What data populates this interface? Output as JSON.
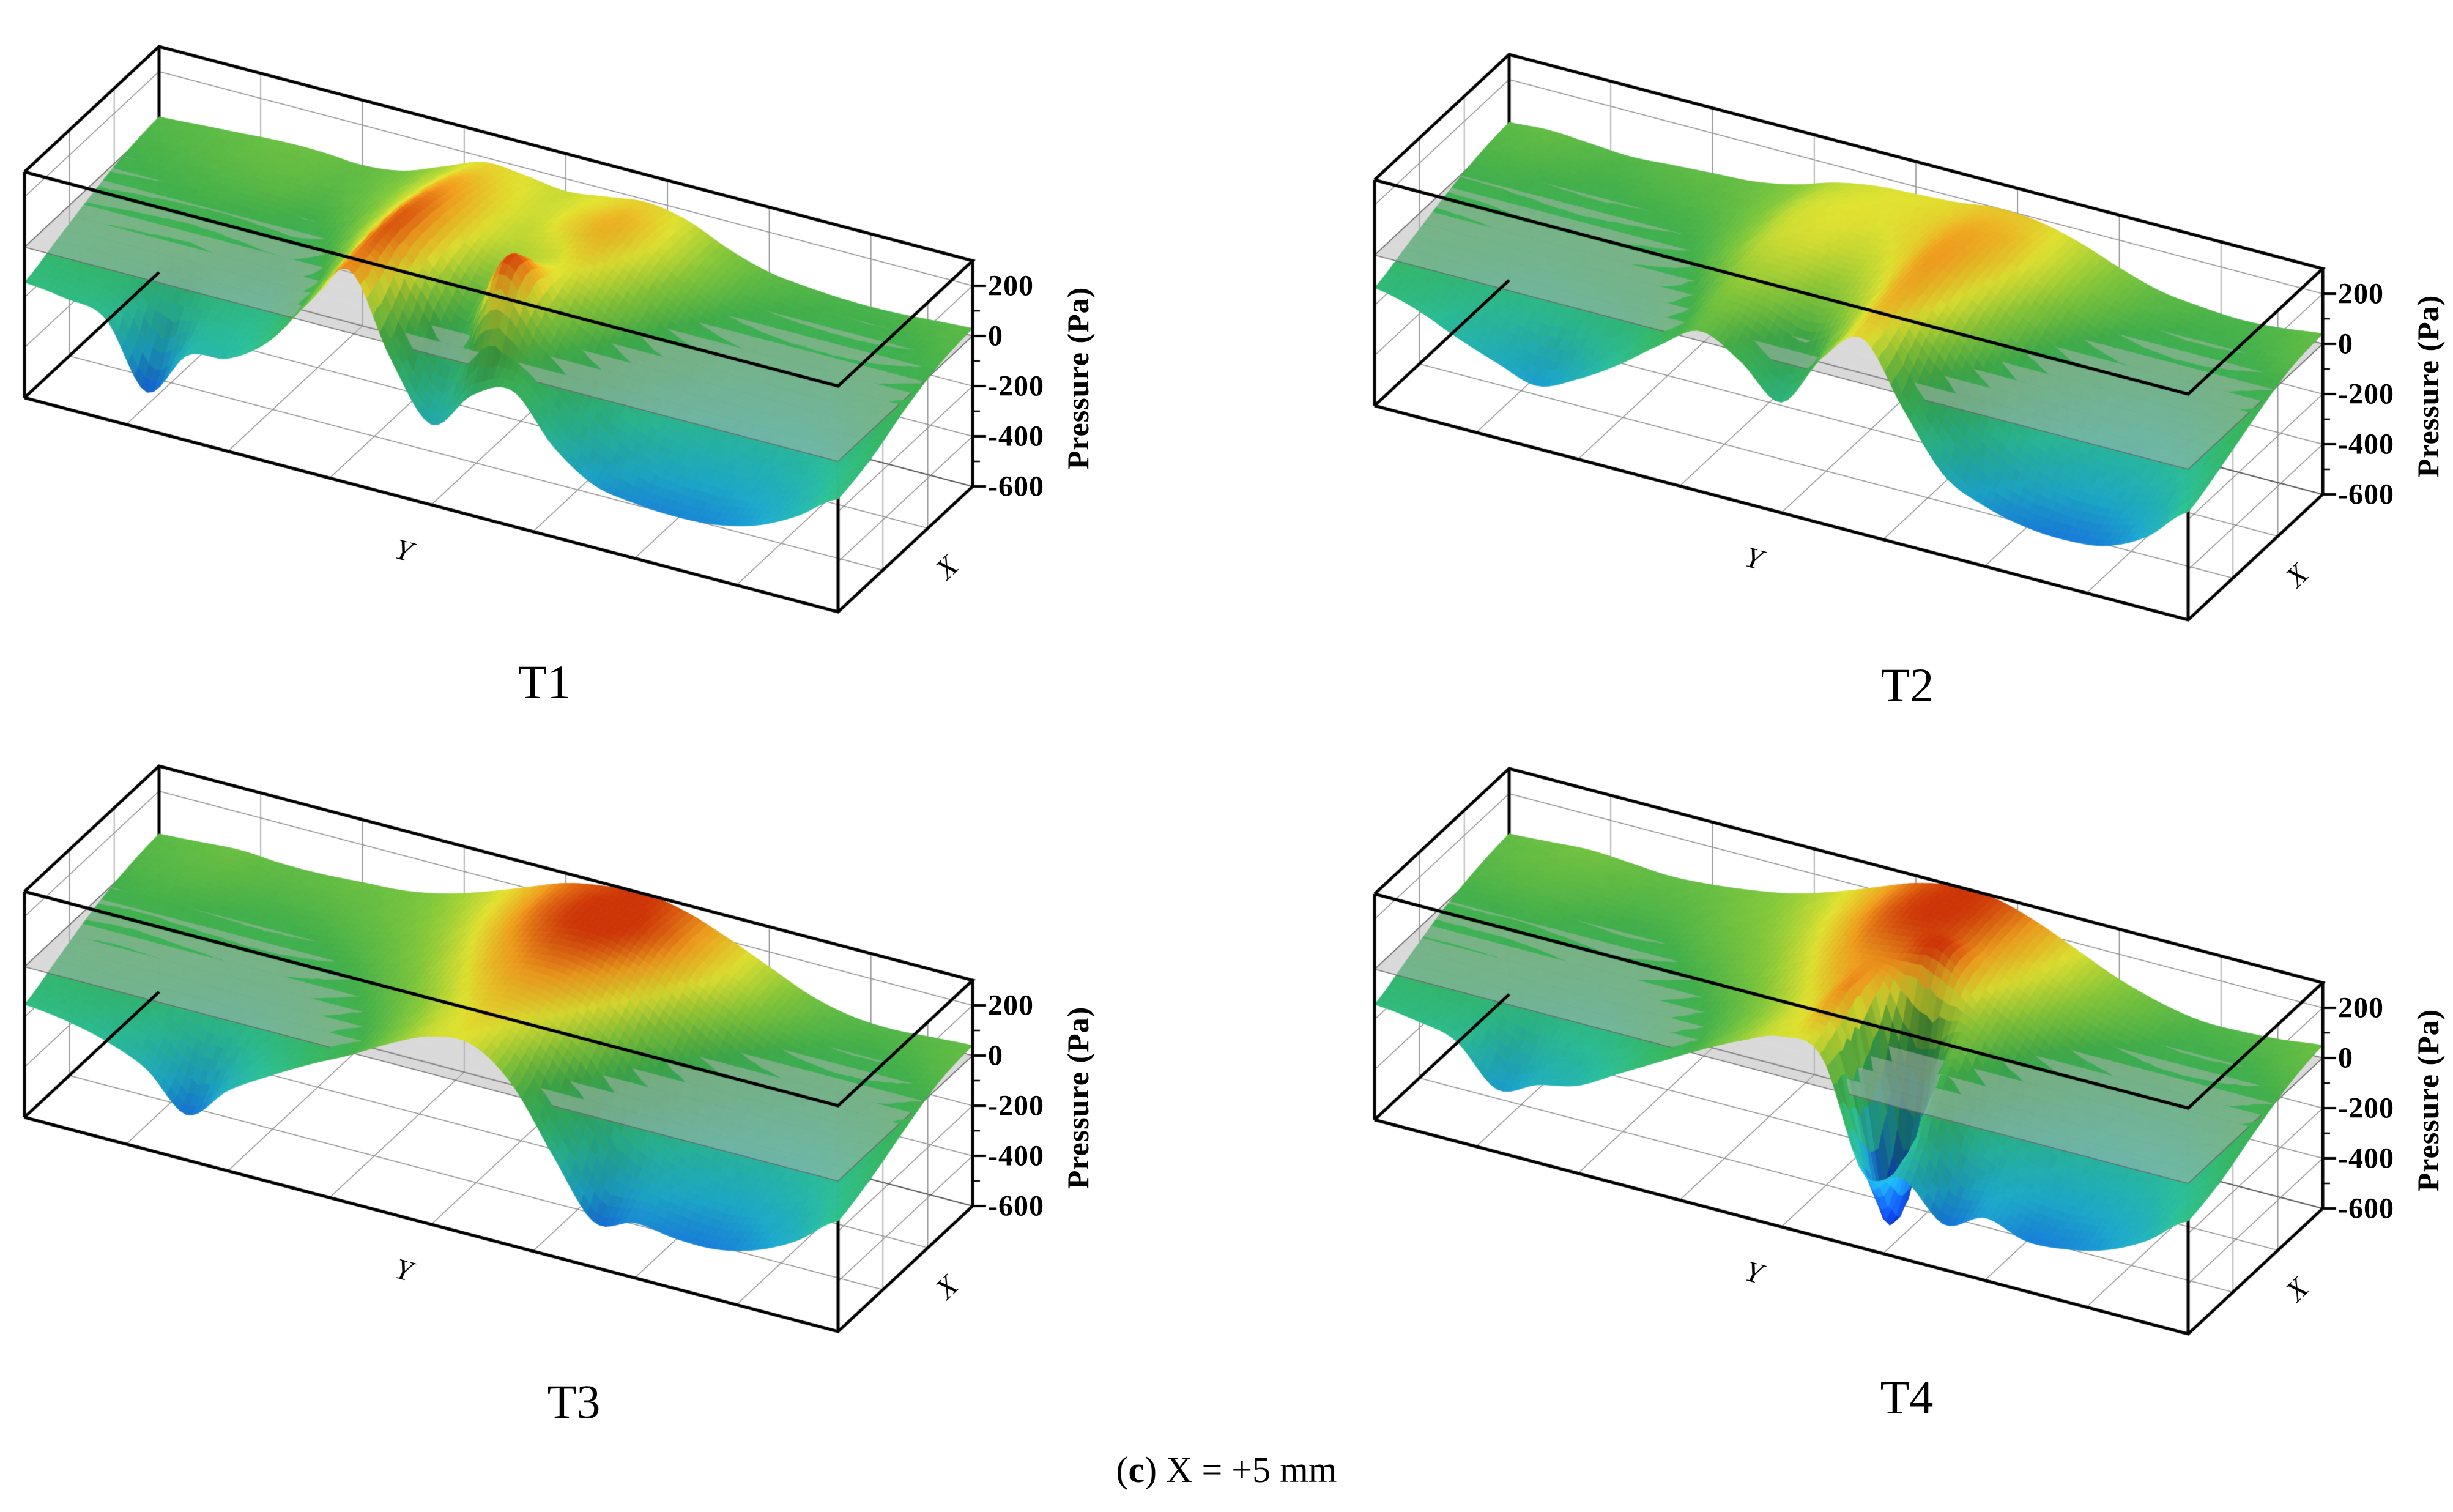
{
  "figure": {
    "caption": {
      "open_paren": "(",
      "letter": "c",
      "close_paren": ")",
      "text": " X = +5 mm"
    }
  },
  "chart_data": {
    "type": "surface",
    "layout": "2x2 grid of 3D pressure surface plots at four times",
    "y_axis": {
      "label": "Y"
    },
    "x_axis": {
      "label": "X"
    },
    "z_axis": {
      "label": "Pressure (Pa)",
      "ticks": [
        "200",
        "0",
        "-200",
        "-400",
        "-600"
      ],
      "range_pa": [
        -600,
        300
      ],
      "major_tick_step_pa": 200,
      "minor_tick_step_pa": 100
    },
    "zero_plane": {
      "present": true,
      "z_pa": 0,
      "color": "#c8c8c8",
      "opacity": 0.5
    },
    "colormap": {
      "stops": [
        [
          -620,
          "#0a2ecc"
        ],
        [
          -460,
          "#1565f0"
        ],
        [
          -330,
          "#1fb4d8"
        ],
        [
          -200,
          "#2ec89e"
        ],
        [
          -90,
          "#38c06a"
        ],
        [
          0,
          "#46b84e"
        ],
        [
          90,
          "#8cd03c"
        ],
        [
          170,
          "#e6e832"
        ],
        [
          240,
          "#f5a01e"
        ],
        [
          320,
          "#c81400"
        ]
      ]
    },
    "grid_note": "surface_pressure_grid_pa rows run X back-to-front (5 rows), columns run Y left-to-right (21 cols), values in Pa estimated from the rendered surfaces",
    "panels": [
      {
        "label": "T1",
        "surface_pressure_grid_pa": [
          [
            20,
            30,
            40,
            50,
            50,
            40,
            60,
            120,
            180,
            170,
            150,
            170,
            190,
            160,
            90,
            40,
            20,
            10,
            10,
            20,
            30
          ],
          [
            0,
            10,
            20,
            30,
            30,
            20,
            60,
            140,
            230,
            190,
            150,
            190,
            220,
            160,
            70,
            0,
            -30,
            -40,
            -40,
            -20,
            10
          ],
          [
            -40,
            -30,
            -20,
            -20,
            -30,
            -40,
            20,
            150,
            270,
            190,
            110,
            150,
            170,
            90,
            -20,
            -90,
            -130,
            -150,
            -140,
            -100,
            -40
          ],
          [
            -90,
            -80,
            -80,
            -100,
            -140,
            -160,
            -60,
            120,
            280,
            140,
            -20,
            290,
            80,
            -40,
            -160,
            -230,
            -270,
            -280,
            -260,
            -200,
            -110
          ],
          [
            -140,
            -160,
            -200,
            -450,
            -260,
            -230,
            -120,
            80,
            250,
            -60,
            -280,
            -120,
            -60,
            -240,
            -350,
            -380,
            -390,
            -380,
            -340,
            -260,
            -150
          ]
        ]
      },
      {
        "label": "T2",
        "surface_pressure_grid_pa": [
          [
            30,
            40,
            30,
            20,
            30,
            40,
            50,
            80,
            130,
            160,
            170,
            180,
            200,
            190,
            150,
            90,
            40,
            20,
            10,
            20,
            40
          ],
          [
            10,
            10,
            0,
            -10,
            0,
            10,
            30,
            80,
            150,
            170,
            170,
            190,
            230,
            210,
            140,
            60,
            0,
            -30,
            -30,
            -10,
            20
          ],
          [
            -30,
            -40,
            -60,
            -70,
            -60,
            -40,
            -10,
            60,
            140,
            150,
            130,
            170,
            240,
            180,
            80,
            -30,
            -110,
            -150,
            -150,
            -110,
            -40
          ],
          [
            -80,
            -100,
            -140,
            -170,
            -160,
            -130,
            -90,
            0,
            90,
            80,
            40,
            120,
            220,
            110,
            -40,
            -180,
            -250,
            -280,
            -270,
            -210,
            -110
          ],
          [
            -130,
            -170,
            -240,
            -300,
            -350,
            -280,
            -180,
            -60,
            40,
            -40,
            -160,
            60,
            180,
            -60,
            -280,
            -360,
            -400,
            -410,
            -390,
            -310,
            -170
          ]
        ]
      },
      {
        "label": "T3",
        "surface_pressure_grid_pa": [
          [
            30,
            40,
            50,
            40,
            40,
            50,
            60,
            90,
            140,
            200,
            260,
            290,
            300,
            270,
            210,
            140,
            70,
            30,
            20,
            30,
            40
          ],
          [
            10,
            20,
            20,
            10,
            10,
            20,
            40,
            70,
            120,
            190,
            260,
            300,
            310,
            270,
            190,
            100,
            20,
            -20,
            -30,
            -10,
            20
          ],
          [
            -30,
            -20,
            -30,
            -40,
            -50,
            -40,
            -10,
            30,
            80,
            150,
            220,
            260,
            250,
            180,
            60,
            -50,
            -120,
            -150,
            -150,
            -110,
            -40
          ],
          [
            -90,
            -80,
            -90,
            -130,
            -170,
            -150,
            -90,
            -30,
            30,
            100,
            170,
            200,
            150,
            30,
            -140,
            -240,
            -280,
            -290,
            -260,
            -200,
            -110
          ],
          [
            -150,
            -170,
            -210,
            -280,
            -420,
            -280,
            -180,
            -90,
            -10,
            80,
            150,
            160,
            40,
            -200,
            -420,
            -380,
            -400,
            -400,
            -360,
            -280,
            -160
          ]
        ]
      },
      {
        "label": "T4",
        "surface_pressure_grid_pa": [
          [
            40,
            50,
            60,
            50,
            40,
            50,
            70,
            100,
            150,
            210,
            270,
            300,
            290,
            240,
            170,
            100,
            50,
            20,
            20,
            30,
            50
          ],
          [
            20,
            30,
            30,
            20,
            10,
            20,
            50,
            80,
            130,
            200,
            270,
            300,
            280,
            210,
            130,
            50,
            0,
            -30,
            -30,
            -10,
            20
          ],
          [
            -20,
            -20,
            -20,
            -40,
            -60,
            -40,
            0,
            40,
            90,
            160,
            230,
            250,
            220,
            130,
            20,
            -80,
            -140,
            -160,
            -150,
            -110,
            -40
          ],
          [
            -80,
            -80,
            -100,
            -140,
            -170,
            -150,
            -90,
            -20,
            40,
            110,
            180,
            190,
            -600,
            -30,
            -190,
            -260,
            -290,
            -290,
            -260,
            -200,
            -110
          ],
          [
            -140,
            -160,
            -200,
            -350,
            -290,
            -250,
            -160,
            -70,
            20,
            100,
            160,
            120,
            -300,
            -280,
            -420,
            -350,
            -400,
            -390,
            -350,
            -270,
            -150
          ]
        ]
      }
    ]
  }
}
